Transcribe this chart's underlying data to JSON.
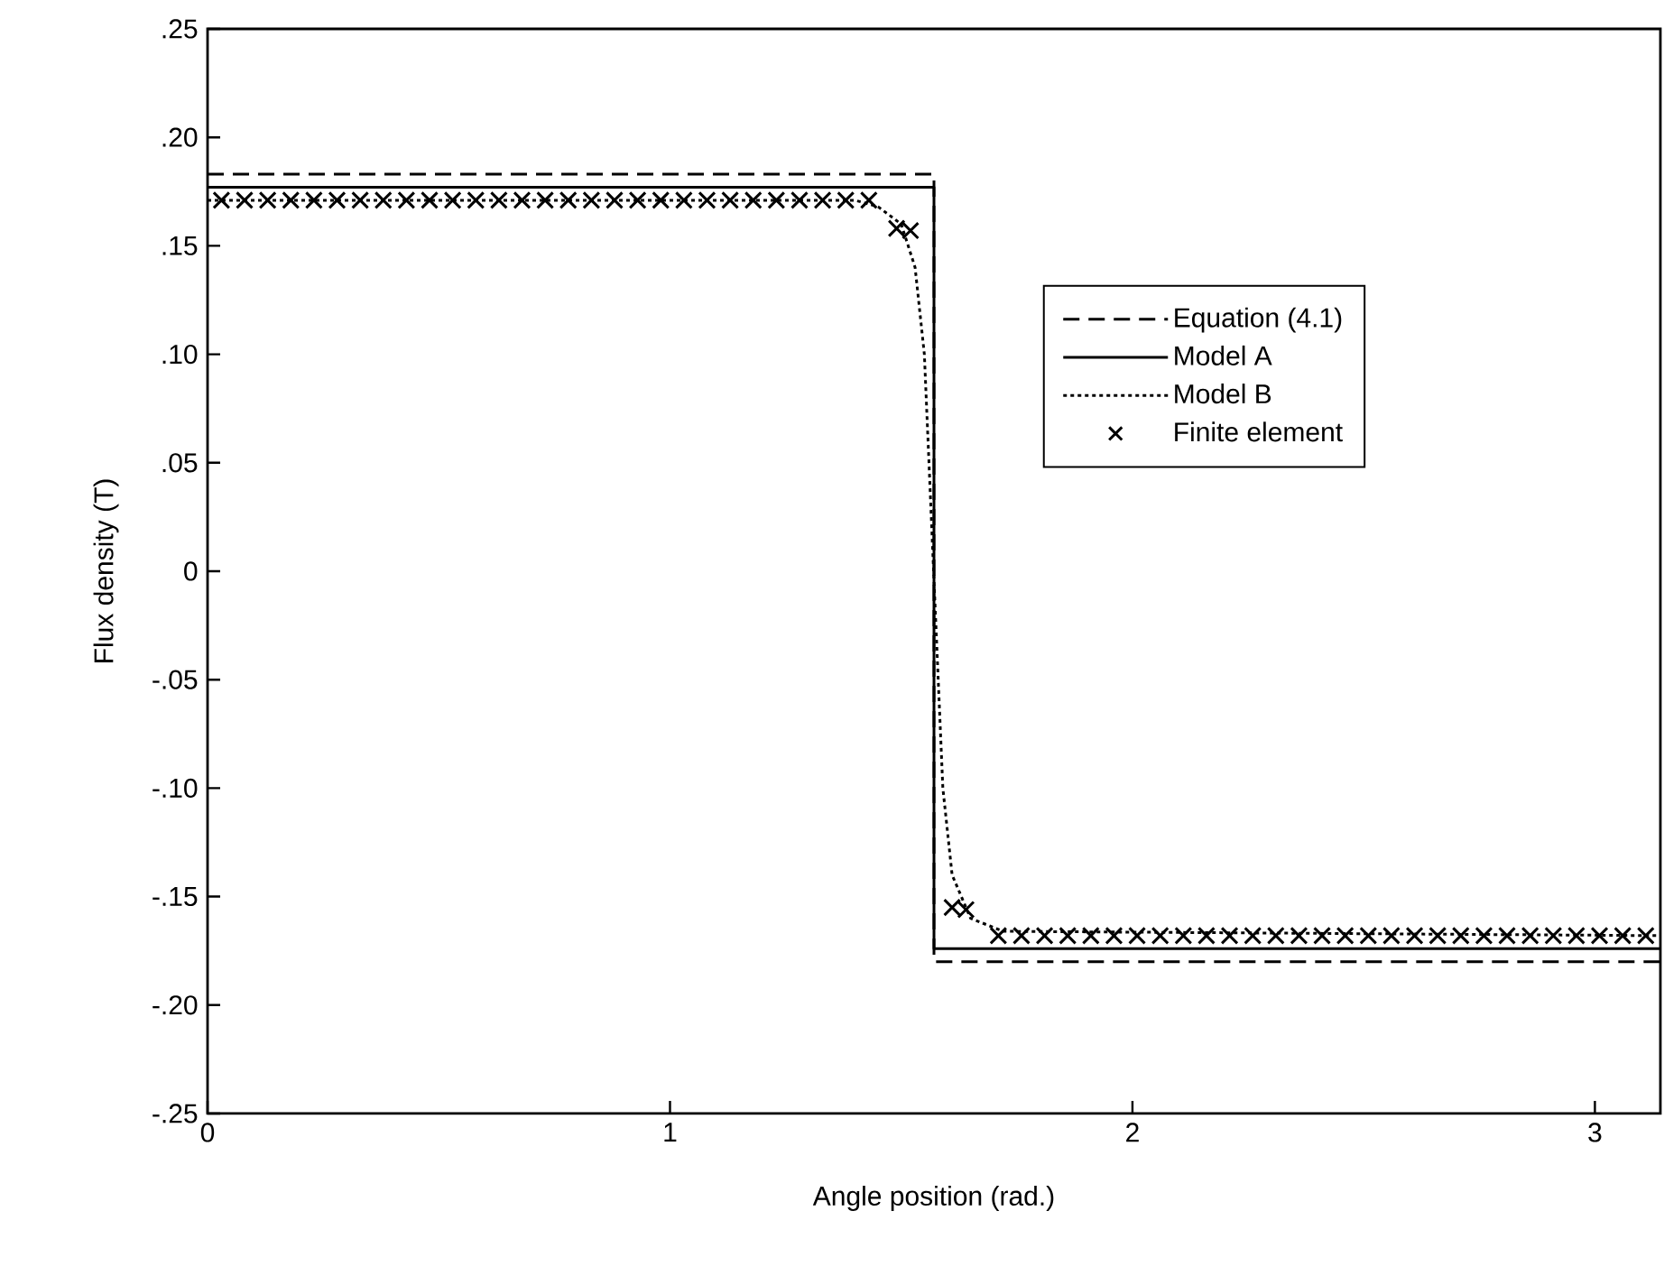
{
  "chart_data": {
    "type": "line",
    "xlabel": "Angle position (rad.)",
    "ylabel": "Flux density (T)",
    "xlim": [
      0,
      3.1416
    ],
    "xticks": [
      0,
      1,
      2,
      3
    ],
    "ylim": [
      -0.25,
      0.25
    ],
    "yticks": [
      {
        "value": -0.25,
        "label": "-.25"
      },
      {
        "value": -0.2,
        "label": "-.20"
      },
      {
        "value": -0.15,
        "label": "-.15"
      },
      {
        "value": -0.1,
        "label": "-.10"
      },
      {
        "value": -0.05,
        "label": "-.05"
      },
      0,
      {
        "value": 0.05,
        "label": ".05"
      },
      {
        "value": 0.1,
        "label": ".10"
      },
      {
        "value": 0.15,
        "label": ".15"
      },
      {
        "value": 0.2,
        "label": ".20"
      },
      {
        "value": 0.25,
        "label": ".25"
      }
    ],
    "grid": false,
    "legend": "right",
    "series": [
      {
        "name": "Equation (4.1)",
        "color": "#000000",
        "line_style": "dashed",
        "marker": "none",
        "x": [
          0,
          1.5708,
          1.5708,
          3.1416
        ],
        "values": [
          0.183,
          0.183,
          -0.18,
          -0.18
        ]
      },
      {
        "name": "Model A",
        "color": "#000000",
        "line_style": "solid",
        "marker": "none",
        "x": [
          0,
          1.5708,
          1.5708,
          3.1416
        ],
        "values": [
          0.177,
          0.177,
          -0.174,
          -0.174
        ]
      },
      {
        "name": "Model B",
        "color": "#000000",
        "line_style": "dotted",
        "marker": "none",
        "x": [
          0,
          1.4,
          1.45,
          1.5,
          1.53,
          1.55,
          1.57,
          1.59,
          1.61,
          1.65,
          1.72,
          3.1416
        ],
        "values": [
          0.171,
          0.171,
          0.168,
          0.16,
          0.14,
          0.1,
          0,
          -0.1,
          -0.14,
          -0.16,
          -0.166,
          -0.168
        ]
      },
      {
        "name": "Finite element",
        "type": "scatter",
        "color": "#000000",
        "marker": "cross",
        "x": [
          0.03,
          0.08,
          0.13,
          0.18,
          0.23,
          0.28,
          0.33,
          0.38,
          0.43,
          0.48,
          0.53,
          0.58,
          0.63,
          0.68,
          0.73,
          0.78,
          0.83,
          0.88,
          0.93,
          0.98,
          1.03,
          1.08,
          1.13,
          1.18,
          1.23,
          1.28,
          1.33,
          1.38,
          1.43,
          1.49,
          1.52,
          1.61,
          1.64,
          1.71,
          1.76,
          1.81,
          1.86,
          1.91,
          1.96,
          2.01,
          2.06,
          2.11,
          2.16,
          2.21,
          2.26,
          2.31,
          2.36,
          2.41,
          2.46,
          2.51,
          2.56,
          2.61,
          2.66,
          2.71,
          2.76,
          2.81,
          2.86,
          2.91,
          2.96,
          3.01,
          3.06,
          3.11
        ],
        "values": [
          0.171,
          0.171,
          0.171,
          0.171,
          0.171,
          0.171,
          0.171,
          0.171,
          0.171,
          0.171,
          0.171,
          0.171,
          0.171,
          0.171,
          0.171,
          0.171,
          0.171,
          0.171,
          0.171,
          0.171,
          0.171,
          0.171,
          0.171,
          0.171,
          0.171,
          0.171,
          0.171,
          0.171,
          0.171,
          0.158,
          0.157,
          -0.155,
          -0.156,
          -0.168,
          -0.168,
          -0.168,
          -0.168,
          -0.168,
          -0.168,
          -0.168,
          -0.168,
          -0.168,
          -0.168,
          -0.168,
          -0.168,
          -0.168,
          -0.168,
          -0.168,
          -0.168,
          -0.168,
          -0.168,
          -0.168,
          -0.168,
          -0.168,
          -0.168,
          -0.168,
          -0.168,
          -0.168,
          -0.168,
          -0.168,
          -0.168,
          -0.168
        ]
      }
    ]
  }
}
